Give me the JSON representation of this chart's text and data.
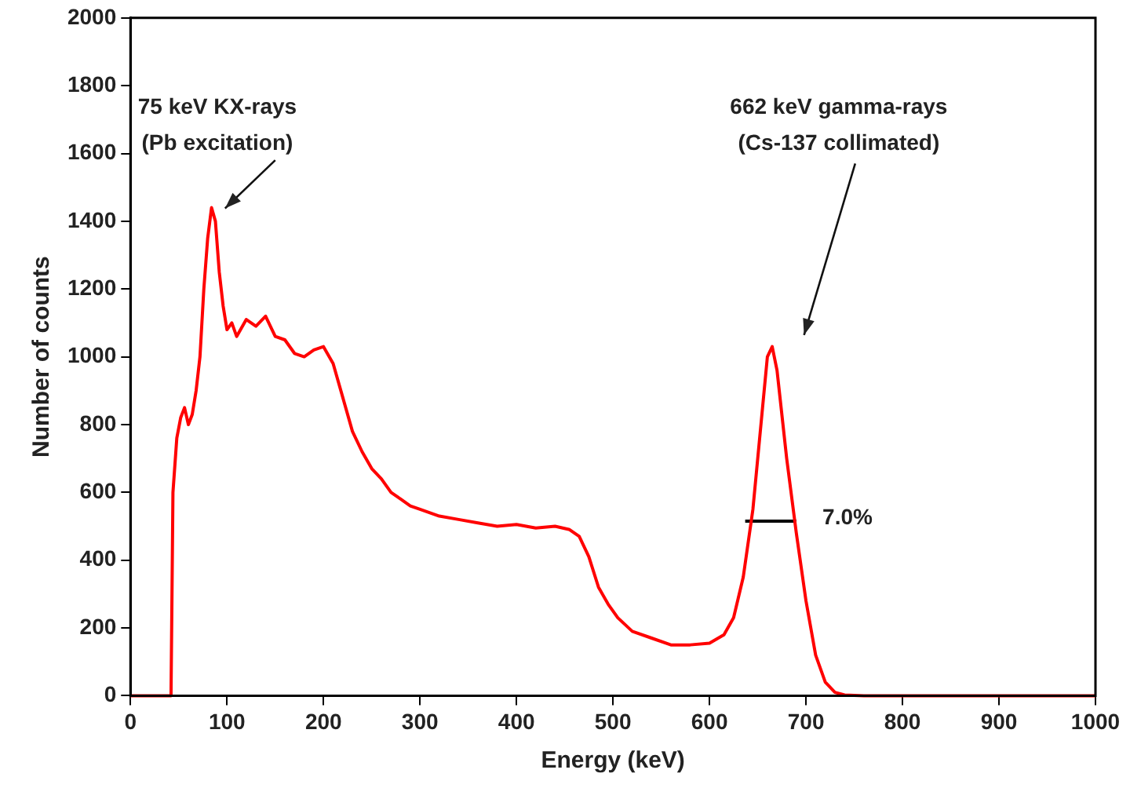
{
  "chart_data": {
    "type": "line",
    "xlabel": "Energy (keV)",
    "ylabel": "Number of counts",
    "xlim": [
      0,
      1000
    ],
    "xticks": [
      0,
      100,
      200,
      300,
      400,
      500,
      600,
      700,
      800,
      900,
      1000
    ],
    "ylim": [
      0,
      2000
    ],
    "yticks": [
      0,
      200,
      400,
      600,
      800,
      1000,
      1200,
      1400,
      1600,
      1800,
      2000
    ],
    "grid": false,
    "legend": false,
    "marker": "none",
    "line_style": "solid",
    "series": [
      {
        "color": "#ff0000",
        "x": [
          0,
          40,
          42,
          44,
          48,
          52,
          56,
          60,
          64,
          68,
          72,
          76,
          80,
          84,
          88,
          92,
          96,
          100,
          105,
          110,
          120,
          130,
          140,
          150,
          160,
          170,
          180,
          190,
          200,
          210,
          220,
          230,
          240,
          250,
          260,
          270,
          280,
          290,
          300,
          320,
          340,
          360,
          380,
          400,
          420,
          440,
          455,
          465,
          475,
          485,
          495,
          505,
          520,
          540,
          560,
          580,
          600,
          615,
          625,
          635,
          645,
          655,
          660,
          665,
          670,
          680,
          690,
          700,
          710,
          720,
          730,
          740,
          760,
          800,
          900,
          1000
        ],
        "values": [
          0,
          0,
          0,
          600,
          760,
          820,
          850,
          800,
          830,
          900,
          1000,
          1200,
          1350,
          1440,
          1400,
          1250,
          1150,
          1080,
          1100,
          1060,
          1110,
          1090,
          1120,
          1060,
          1050,
          1010,
          1000,
          1020,
          1030,
          980,
          880,
          780,
          720,
          670,
          640,
          600,
          580,
          560,
          550,
          530,
          520,
          510,
          500,
          505,
          495,
          500,
          490,
          470,
          410,
          320,
          270,
          230,
          190,
          170,
          150,
          150,
          155,
          180,
          230,
          350,
          550,
          850,
          1000,
          1030,
          960,
          700,
          480,
          280,
          120,
          40,
          10,
          2,
          0,
          0,
          0,
          0
        ]
      },
      {
        "color": "#000000",
        "x": [
          637,
          690
        ],
        "values": [
          515,
          515
        ]
      }
    ],
    "annotations": [
      "75 keV KX-rays\n(Pb excitation)",
      "662 keV gamma-rays\n(Cs-137 collimated)",
      "7.0%"
    ]
  }
}
